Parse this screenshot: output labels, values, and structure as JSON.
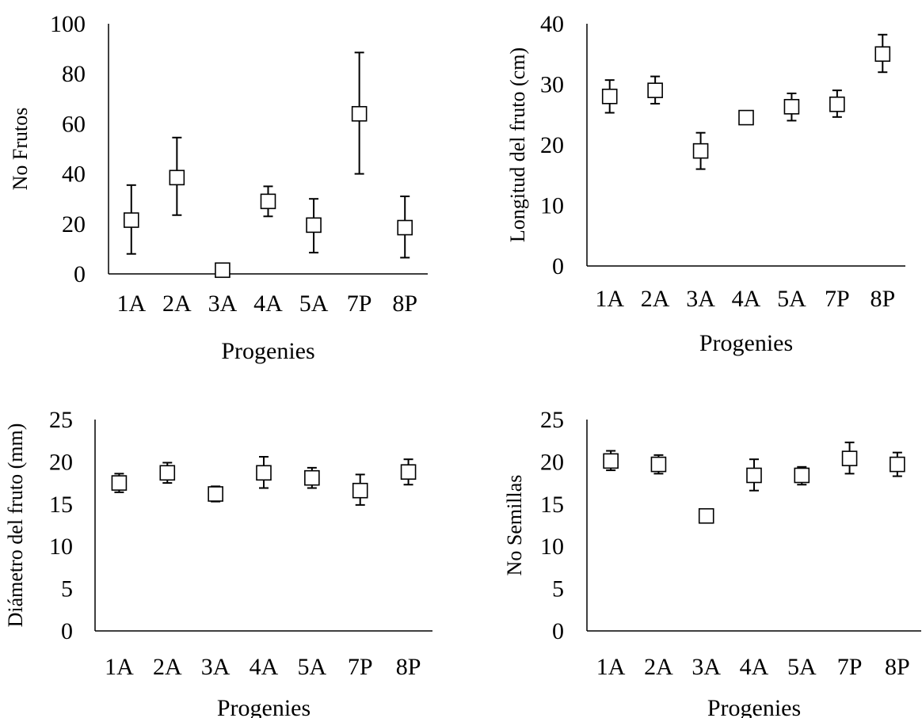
{
  "chart_data": [
    {
      "type": "scatter",
      "xlabel": "Progenies",
      "ylabel": "No Frutos",
      "ylim": [
        0,
        100
      ],
      "yticks": [
        0,
        20,
        40,
        60,
        80,
        100
      ],
      "categories": [
        "1A",
        "2A",
        "3A",
        "4A",
        "5A",
        "7P",
        "8P"
      ],
      "values": [
        21.5,
        38.5,
        1.5,
        29,
        19.5,
        64,
        18.5
      ],
      "err_low": [
        8,
        23.5,
        1.5,
        23,
        8.5,
        40,
        6.5
      ],
      "err_high": [
        35.5,
        54.5,
        1.5,
        35,
        30,
        88.5,
        31
      ],
      "grid": false,
      "marker": "open-square",
      "colors": {
        "marker": "#000000",
        "axis": "#000000"
      }
    },
    {
      "type": "scatter",
      "xlabel": "Progenies",
      "ylabel": "Longitud del fruto (cm)",
      "ylim": [
        0,
        40
      ],
      "yticks": [
        0,
        10,
        20,
        30,
        40
      ],
      "categories": [
        "1A",
        "2A",
        "3A",
        "4A",
        "5A",
        "7P",
        "8P"
      ],
      "values": [
        28,
        29,
        19,
        24.5,
        26.3,
        26.7,
        35
      ],
      "err_low": [
        25.3,
        26.8,
        16,
        24,
        24,
        24.6,
        32
      ],
      "err_high": [
        30.7,
        31.3,
        22,
        25.2,
        28.5,
        29,
        38.2
      ],
      "grid": false,
      "marker": "open-square",
      "colors": {
        "marker": "#000000",
        "axis": "#000000"
      }
    },
    {
      "type": "scatter",
      "xlabel": "Progenies",
      "ylabel": "Diámetro del fruto (mm)",
      "ylim": [
        0,
        25
      ],
      "yticks": [
        0,
        5,
        10,
        15,
        20,
        25
      ],
      "categories": [
        "1A",
        "2A",
        "3A",
        "4A",
        "5A",
        "7P",
        "8P"
      ],
      "values": [
        17.5,
        18.7,
        16.2,
        18.7,
        18.1,
        16.6,
        18.8
      ],
      "err_low": [
        16.4,
        17.5,
        15.3,
        16.9,
        16.9,
        14.9,
        17.3
      ],
      "err_high": [
        18.6,
        19.9,
        17.1,
        20.6,
        19.3,
        18.5,
        20.3
      ],
      "grid": false,
      "marker": "open-square",
      "colors": {
        "marker": "#000000",
        "axis": "#000000"
      }
    },
    {
      "type": "scatter",
      "xlabel": "Progenies",
      "ylabel": "No Semillas",
      "ylim": [
        0,
        25
      ],
      "yticks": [
        0,
        5,
        10,
        15,
        20,
        25
      ],
      "categories": [
        "1A",
        "2A",
        "3A",
        "4A",
        "5A",
        "7P",
        "8P"
      ],
      "values": [
        20.1,
        19.7,
        13.6,
        18.4,
        18.4,
        20.4,
        19.7
      ],
      "err_low": [
        19,
        18.6,
        12.9,
        16.6,
        17.3,
        18.6,
        18.3
      ],
      "err_high": [
        21.3,
        20.8,
        14.3,
        20.3,
        19.4,
        22.3,
        21.1
      ],
      "grid": false,
      "marker": "open-square",
      "colors": {
        "marker": "#000000",
        "axis": "#000000"
      }
    }
  ]
}
